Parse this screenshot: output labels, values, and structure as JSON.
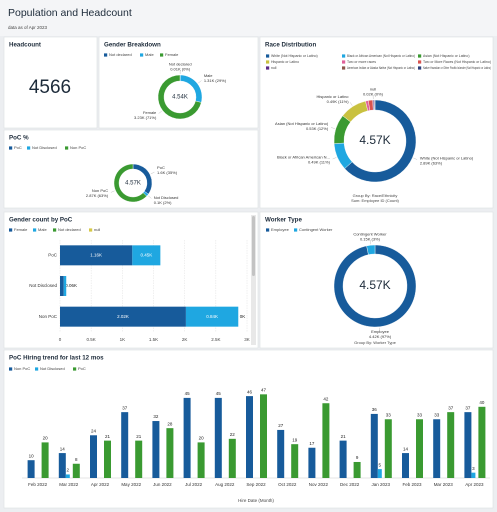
{
  "header": {
    "title": "Population and Headcount",
    "subtitle": "data as of Apr 2023"
  },
  "chart_data": [
    {
      "type": "kpi",
      "title": "Headcount",
      "value": 4566
    },
    {
      "type": "donut",
      "title": "Gender Breakdown",
      "center_label": "4.54K",
      "categories": [
        "Not declared",
        "Male",
        "Female"
      ],
      "values": [
        0.01,
        1.31,
        3.23
      ],
      "value_labels": [
        "0.01K (0%)",
        "1.31K (29%)",
        "3.23K (71%)"
      ],
      "colors": [
        "#175b9b",
        "#1fa7e1",
        "#3a9a31"
      ]
    },
    {
      "type": "donut",
      "title": "Race Distribution",
      "center_label": "4.57K",
      "categories": [
        "White (Not Hispanic or Latino)",
        "Black or African American (Not Hispanic or Latino)",
        "Asian (Not Hispanic or Latino)",
        "Hispanic or Latino",
        "Two or more races",
        "Two or More Races (Not Hispanic or Latino)",
        "null",
        "American Indian or Alaska Native (Not Hispanic or Latino)",
        "Native Hawaiian or Other Pacific Islander (Not Hispanic or Latino)"
      ],
      "slice_names": [
        "White (Not Hispanic or Latino)",
        "Black or African American N...",
        "Asian (Not Hispanic or Latino)",
        "Hispanic or Latino",
        null,
        null,
        "null",
        null,
        null
      ],
      "values": [
        2.89,
        0.49,
        0.53,
        0.49,
        0.05,
        0.08,
        0.02,
        0.01,
        0.01
      ],
      "value_labels": [
        "2.89K (63%)",
        "0.49K (11%)",
        "0.53K (12%)",
        "0.49K (11%)",
        null,
        null,
        "0.02K (0%)",
        null,
        null
      ],
      "colors": [
        "#175b9b",
        "#1fa7e1",
        "#3a9a31",
        "#c9c13f",
        "#e0609a",
        "#d9534f",
        "#5b2a86",
        "#8c564b",
        "#2c3e7a"
      ],
      "footer": [
        "Group By: Race/Ethnicity",
        "Sum: Employee ID (Count)"
      ]
    },
    {
      "type": "donut",
      "title": "PoC %",
      "center_label": "4.57K",
      "categories": [
        "PoC",
        "Not Disclosed",
        "Non PoC"
      ],
      "values": [
        1.6,
        0.1,
        2.87
      ],
      "value_labels": [
        "1.6K (35%)",
        "0.1K (2%)",
        "2.87K (63%)"
      ],
      "colors": [
        "#175b9b",
        "#1fa7e1",
        "#3a9a31"
      ]
    },
    {
      "type": "hbar",
      "title": "Gender count by PoC",
      "categories": [
        "PoC",
        "Not Disclosed",
        "Non PoC"
      ],
      "series": [
        {
          "name": "Female",
          "color": "#175b9b",
          "values": [
            1.16,
            0.06,
            2.02
          ],
          "value_labels": [
            "1.16K",
            "0.06K",
            "2.02K"
          ]
        },
        {
          "name": "Male",
          "color": "#1fa7e1",
          "values": [
            0.45,
            0.04,
            0.84
          ],
          "value_labels": [
            "0.45K",
            null,
            "0.84K"
          ]
        },
        {
          "name": "Not declared",
          "color": "#3a9a31",
          "values": [
            null,
            null,
            0
          ],
          "value_labels": [
            null,
            null,
            "0K"
          ]
        },
        {
          "name": "null",
          "color": "#d5c846",
          "values": [
            null,
            null,
            null
          ]
        }
      ],
      "xlim": [
        0,
        3
      ],
      "xticks": [
        0,
        {
          "value": 0.5,
          "label": "0.5K"
        },
        {
          "value": 1,
          "label": "1K"
        },
        {
          "value": 1.5,
          "label": "1.5K"
        },
        {
          "value": 2,
          "label": "2K"
        },
        {
          "value": 2.5,
          "label": "2.5K"
        },
        {
          "value": 3,
          "label": "3K"
        }
      ],
      "grid": true
    },
    {
      "type": "donut",
      "title": "Worker Type",
      "center_label": "4.57K",
      "categories": [
        "Employee",
        "Contingent Worker"
      ],
      "values": [
        4.42,
        0.15
      ],
      "value_labels": [
        "4.42K (97%)",
        "0.15K (3%)"
      ],
      "colors": [
        "#175b9b",
        "#1fa7e1"
      ],
      "footer": [
        "Group By: Worker Type"
      ]
    },
    {
      "type": "bar",
      "title": "PoC Hiring trend for last 12 mos",
      "x_label": "Hire Date (Month)",
      "categories": [
        "Feb 2022",
        "Mar 2022",
        "Apr 2022",
        "May 2022",
        "Jun 2022",
        "Jul 2022",
        "Aug 2022",
        "Sep 2022",
        "Oct 2022",
        "Nov 2022",
        "Dec 2022",
        "Jan 2023",
        "Feb 2023",
        "Mar 2023",
        "Apr 2023"
      ],
      "series": [
        {
          "name": "Non PoC",
          "color": "#175b9b",
          "values": [
            10,
            14,
            24,
            37,
            32,
            45,
            45,
            46,
            27,
            17,
            21,
            36,
            14,
            33,
            37
          ]
        },
        {
          "name": "Not Disclosed",
          "color": "#1fa7e1",
          "values": [
            null,
            2,
            null,
            null,
            null,
            null,
            null,
            null,
            null,
            null,
            null,
            5,
            null,
            null,
            3
          ]
        },
        {
          "name": "PoC",
          "color": "#3a9a31",
          "values": [
            20,
            8,
            21,
            21,
            28,
            20,
            22,
            47,
            19,
            42,
            9,
            33,
            33,
            37,
            40
          ]
        }
      ],
      "ylim": [
        0,
        50
      ]
    }
  ]
}
